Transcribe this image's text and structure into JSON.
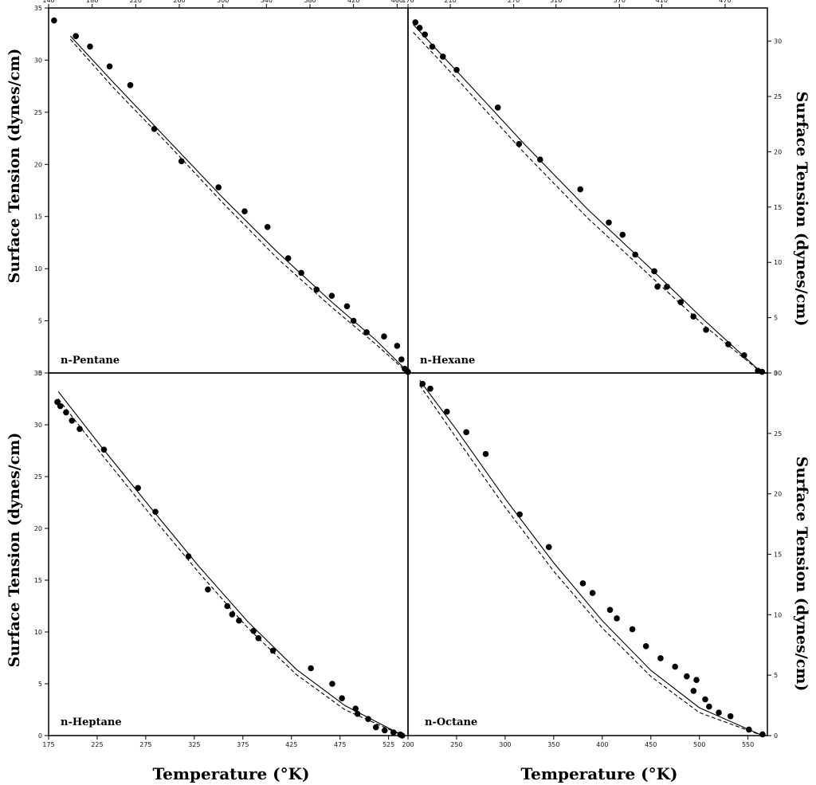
{
  "figure": {
    "left_ylabel": "Surface Tension (dynes/cm)",
    "right_ylabel": "Surface Tension (dynes/cm)",
    "xlabel": "Temperature (°K)"
  },
  "chart_data": [
    {
      "type": "scatter",
      "label": "n-Pentane",
      "xlabel": "",
      "ylabel": "Surface Tension (dynes/cm)",
      "xlim": [
        140,
        470
      ],
      "ylim": [
        0,
        35
      ],
      "x_axis_position": "top",
      "y_axis_position": "left",
      "xticks": [
        140,
        180,
        220,
        260,
        300,
        340,
        380,
        420,
        460
      ],
      "yticks": [
        0,
        5,
        10,
        15,
        20,
        25,
        30,
        35
      ],
      "series": [
        {
          "style": "points",
          "x": [
            145,
            165,
            178,
            196,
            215,
            237,
            262,
            296,
            320,
            341,
            360,
            372,
            386,
            400,
            414,
            420,
            432,
            448,
            460,
            464,
            467,
            469,
            470
          ],
          "y": [
            33.8,
            32.3,
            31.3,
            29.4,
            27.6,
            23.4,
            20.3,
            17.8,
            15.5,
            14.0,
            11.0,
            9.6,
            8.0,
            7.4,
            6.4,
            5.0,
            3.9,
            3.5,
            2.6,
            1.3,
            0.4,
            0.2,
            0.1
          ]
        },
        {
          "style": "solid",
          "x": [
            160,
            200,
            250,
            300,
            350,
            400,
            440,
            470
          ],
          "y": [
            32.3,
            27.8,
            22.3,
            16.8,
            11.6,
            6.8,
            3.2,
            0.1
          ]
        },
        {
          "style": "dashed",
          "x": [
            160,
            200,
            250,
            300,
            350,
            400,
            440,
            470
          ],
          "y": [
            32.0,
            27.3,
            21.9,
            16.3,
            11.0,
            6.3,
            2.8,
            0.0
          ]
        }
      ]
    },
    {
      "type": "scatter",
      "label": "n-Hexane",
      "xlabel": "",
      "ylabel": "Surface Tension (dynes/cm)",
      "xlim": [
        170,
        510
      ],
      "ylim": [
        0,
        33
      ],
      "x_axis_position": "top",
      "y_axis_position": "right",
      "xticks": [
        170,
        210,
        270,
        310,
        370,
        410,
        470
      ],
      "yticks": [
        0,
        5,
        10,
        15,
        20,
        25,
        30
      ],
      "series": [
        {
          "style": "points",
          "x": [
            177,
            181,
            186,
            193,
            203,
            216,
            255,
            275,
            295,
            333,
            360,
            373,
            385,
            403,
            406,
            415,
            428,
            440,
            452,
            473,
            488,
            501,
            505
          ],
          "y": [
            31.7,
            31.2,
            30.6,
            29.5,
            28.6,
            27.4,
            24.0,
            20.7,
            19.3,
            16.6,
            13.6,
            12.5,
            10.7,
            9.2,
            7.8,
            7.8,
            6.4,
            5.1,
            3.9,
            2.6,
            1.6,
            0.2,
            0.1
          ]
        },
        {
          "style": "solid",
          "x": [
            175,
            220,
            280,
            340,
            400,
            450,
            505
          ],
          "y": [
            31.5,
            26.9,
            20.7,
            14.8,
            9.4,
            4.8,
            0.0
          ]
        },
        {
          "style": "dashed",
          "x": [
            175,
            220,
            280,
            340,
            400,
            450,
            505
          ],
          "y": [
            30.8,
            26.2,
            19.9,
            14.0,
            8.7,
            4.3,
            0.0
          ]
        }
      ]
    },
    {
      "type": "scatter",
      "label": "n-Heptane",
      "xlabel": "Temperature (°K)",
      "ylabel": "Surface Tension (dynes/cm)",
      "xlim": [
        175,
        545
      ],
      "ylim": [
        0,
        35
      ],
      "x_axis_position": "bottom",
      "y_axis_position": "left",
      "xticks": [
        175,
        225,
        275,
        325,
        375,
        425,
        475,
        525
      ],
      "yticks": [
        0,
        5,
        10,
        15,
        20,
        25,
        30,
        35
      ],
      "series": [
        {
          "style": "points",
          "x": [
            184,
            187,
            193,
            199,
            207,
            232,
            267,
            285,
            319,
            339,
            359,
            364,
            371,
            386,
            391,
            406,
            445,
            467,
            477,
            491,
            493,
            504,
            512,
            521,
            530,
            537,
            539
          ],
          "y": [
            32.2,
            31.8,
            31.2,
            30.4,
            29.6,
            27.6,
            23.9,
            21.6,
            17.3,
            14.1,
            12.5,
            11.7,
            11.1,
            10.1,
            9.4,
            8.2,
            6.5,
            5.0,
            3.6,
            2.6,
            2.1,
            1.6,
            0.8,
            0.5,
            0.3,
            0.1,
            0.0
          ]
        },
        {
          "style": "solid",
          "x": [
            185,
            230,
            280,
            330,
            380,
            430,
            480,
            540
          ],
          "y": [
            33.2,
            27.8,
            22.0,
            16.3,
            11.0,
            6.4,
            2.9,
            0.0
          ]
        },
        {
          "style": "dashed",
          "x": [
            185,
            230,
            280,
            330,
            380,
            430,
            480,
            540
          ],
          "y": [
            32.5,
            27.1,
            21.3,
            15.7,
            10.4,
            5.9,
            2.5,
            0.0
          ]
        }
      ]
    },
    {
      "type": "scatter",
      "label": "n-Octane",
      "xlabel": "Temperature (°K)",
      "ylabel": "Surface Tension (dynes/cm)",
      "xlim": [
        200,
        570
      ],
      "ylim": [
        0,
        30
      ],
      "x_axis_position": "bottom",
      "y_axis_position": "right",
      "xticks": [
        200,
        250,
        300,
        350,
        400,
        450,
        500,
        550
      ],
      "yticks": [
        0,
        5,
        10,
        15,
        20,
        25,
        30
      ],
      "series": [
        {
          "style": "points",
          "x": [
            215,
            223,
            240,
            260,
            280,
            315,
            345,
            380,
            390,
            408,
            415,
            431,
            445,
            460,
            475,
            487,
            494,
            497,
            506,
            510,
            520,
            532,
            551,
            565
          ],
          "y": [
            29.1,
            28.7,
            26.8,
            25.1,
            23.3,
            18.3,
            15.6,
            12.6,
            11.8,
            10.4,
            9.7,
            8.8,
            7.4,
            6.4,
            5.7,
            4.9,
            3.7,
            4.6,
            3.0,
            2.4,
            1.9,
            1.6,
            0.5,
            0.1
          ]
        },
        {
          "style": "solid",
          "x": [
            212,
            250,
            300,
            350,
            400,
            450,
            500,
            565
          ],
          "y": [
            29.4,
            25.3,
            19.6,
            14.3,
            9.5,
            5.4,
            2.3,
            0.0
          ]
        },
        {
          "style": "dashed",
          "x": [
            212,
            250,
            300,
            350,
            400,
            450,
            500,
            565
          ],
          "y": [
            29.0,
            24.6,
            18.9,
            13.6,
            8.9,
            4.9,
            1.9,
            0.0
          ]
        }
      ]
    }
  ]
}
